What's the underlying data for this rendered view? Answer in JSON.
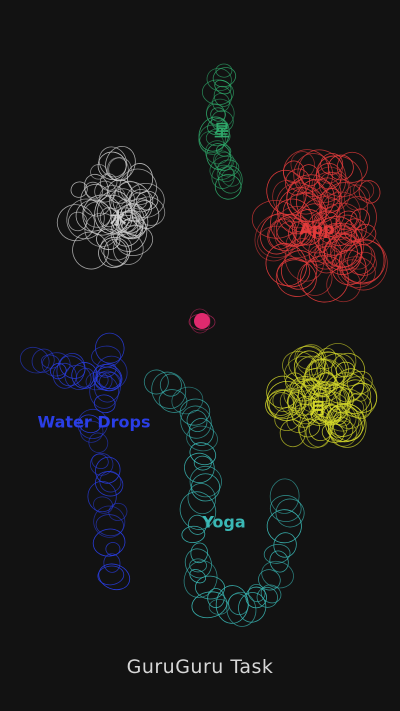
{
  "app": {
    "title": "GuruGuru Task"
  },
  "clusters": [
    {
      "id": "star",
      "label": "星",
      "color": "#2fa86a"
    },
    {
      "id": "water",
      "label": "水",
      "color": "#cfcfcf"
    },
    {
      "id": "app",
      "label": "App",
      "color": "#e23b3b"
    },
    {
      "id": "moon",
      "label": "月",
      "color": "#d4d82a"
    },
    {
      "id": "drops",
      "label": "Water Drops",
      "color": "#2a3ee6"
    },
    {
      "id": "yoga",
      "label": "Yoga",
      "color": "#3ab8b5"
    }
  ],
  "center": {
    "color": "#e02a6e"
  }
}
